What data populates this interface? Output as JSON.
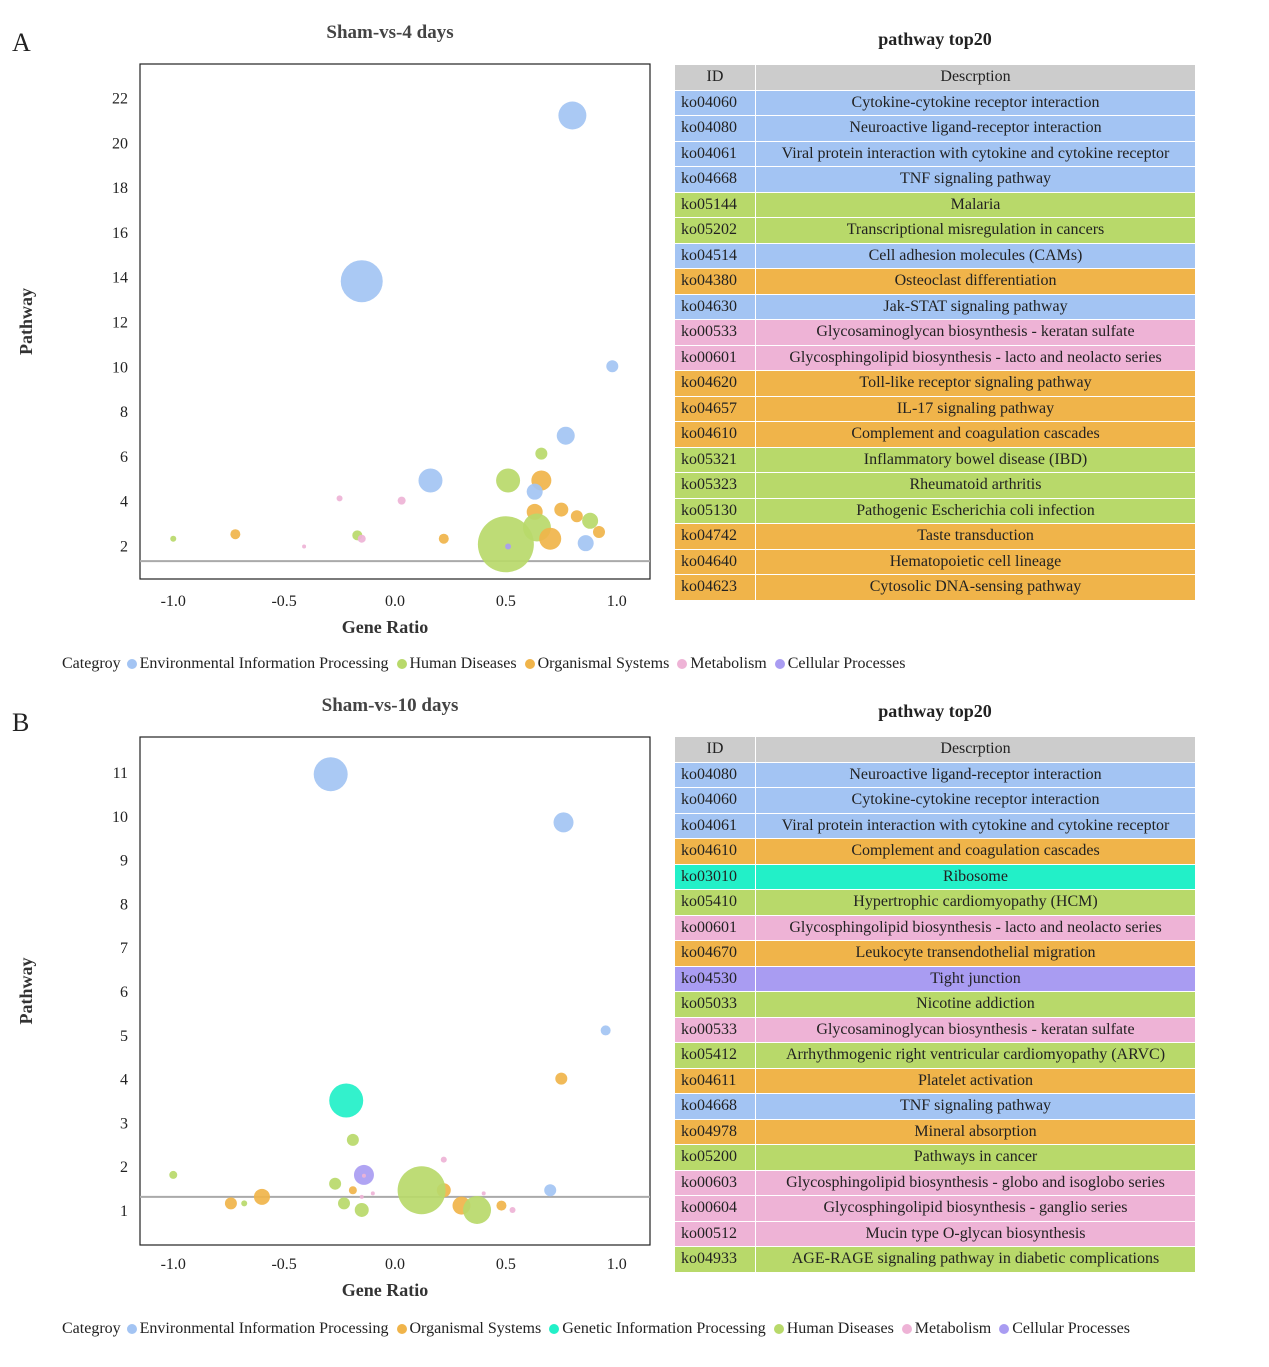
{
  "colors": {
    "Environmental Information Processing": "#a3c4f3",
    "Human Diseases": "#b8d96a",
    "Organismal Systems": "#f0b44a",
    "Metabolism": "#eeb3d6",
    "Cellular Processes": "#a99cf2",
    "Genetic Information Processing": "#22f0c8",
    "header": "#cccccc",
    "threshold": "#aaaaaa"
  },
  "panels": [
    {
      "letter": "A",
      "table_title": "pathway top20",
      "table_header": {
        "id": "ID",
        "desc": "Descrption"
      },
      "rows": [
        {
          "id": "ko04060",
          "desc": "Cytokine-cytokine receptor interaction",
          "category": "Environmental Information Processing"
        },
        {
          "id": "ko04080",
          "desc": "Neuroactive ligand-receptor interaction",
          "category": "Environmental Information Processing"
        },
        {
          "id": "ko04061",
          "desc": "Viral protein interaction with cytokine and cytokine receptor",
          "category": "Environmental Information Processing"
        },
        {
          "id": "ko04668",
          "desc": "TNF signaling pathway",
          "category": "Environmental Information Processing"
        },
        {
          "id": "ko05144",
          "desc": "Malaria",
          "category": "Human Diseases"
        },
        {
          "id": "ko05202",
          "desc": "Transcriptional misregulation in cancers",
          "category": "Human Diseases"
        },
        {
          "id": "ko04514",
          "desc": "Cell adhesion molecules (CAMs)",
          "category": "Environmental Information Processing"
        },
        {
          "id": "ko04380",
          "desc": "Osteoclast differentiation",
          "category": "Organismal Systems"
        },
        {
          "id": "ko04630",
          "desc": "Jak-STAT signaling pathway",
          "category": "Environmental Information Processing"
        },
        {
          "id": "ko00533",
          "desc": "Glycosaminoglycan biosynthesis - keratan sulfate",
          "category": "Metabolism"
        },
        {
          "id": "ko00601",
          "desc": "Glycosphingolipid biosynthesis - lacto and neolacto series",
          "category": "Metabolism"
        },
        {
          "id": "ko04620",
          "desc": "Toll-like receptor signaling pathway",
          "category": "Organismal Systems"
        },
        {
          "id": "ko04657",
          "desc": "IL-17 signaling pathway",
          "category": "Organismal Systems"
        },
        {
          "id": "ko04610",
          "desc": "Complement and coagulation cascades",
          "category": "Organismal Systems"
        },
        {
          "id": "ko05321",
          "desc": "Inflammatory bowel disease (IBD)",
          "category": "Human Diseases"
        },
        {
          "id": "ko05323",
          "desc": "Rheumatoid arthritis",
          "category": "Human Diseases"
        },
        {
          "id": "ko05130",
          "desc": "Pathogenic Escherichia coli infection",
          "category": "Human Diseases"
        },
        {
          "id": "ko04742",
          "desc": "Taste transduction",
          "category": "Organismal Systems"
        },
        {
          "id": "ko04640",
          "desc": "Hematopoietic cell lineage",
          "category": "Organismal Systems"
        },
        {
          "id": "ko04623",
          "desc": "Cytosolic DNA-sensing pathway",
          "category": "Organismal Systems"
        }
      ],
      "legend": {
        "title": "Categroy",
        "items": [
          "Environmental Information Processing",
          "Human Diseases",
          "Organismal Systems",
          "Metabolism",
          "Cellular Processes"
        ]
      }
    },
    {
      "letter": "B",
      "table_title": "pathway top20",
      "table_header": {
        "id": "ID",
        "desc": "Descrption"
      },
      "rows": [
        {
          "id": "ko04080",
          "desc": "Neuroactive ligand-receptor interaction",
          "category": "Environmental Information Processing"
        },
        {
          "id": "ko04060",
          "desc": "Cytokine-cytokine receptor interaction",
          "category": "Environmental Information Processing"
        },
        {
          "id": "ko04061",
          "desc": "Viral protein interaction with cytokine and cytokine receptor",
          "category": "Environmental Information Processing"
        },
        {
          "id": "ko04610",
          "desc": "Complement and coagulation cascades",
          "category": "Organismal Systems"
        },
        {
          "id": "ko03010",
          "desc": "Ribosome",
          "category": "Genetic Information Processing"
        },
        {
          "id": "ko05410",
          "desc": "Hypertrophic cardiomyopathy (HCM)",
          "category": "Human Diseases"
        },
        {
          "id": "ko00601",
          "desc": "Glycosphingolipid biosynthesis - lacto and neolacto series",
          "category": "Metabolism"
        },
        {
          "id": "ko04670",
          "desc": "Leukocyte transendothelial migration",
          "category": "Organismal Systems"
        },
        {
          "id": "ko04530",
          "desc": "Tight junction",
          "category": "Cellular Processes"
        },
        {
          "id": "ko05033",
          "desc": "Nicotine addiction",
          "category": "Human Diseases"
        },
        {
          "id": "ko00533",
          "desc": "Glycosaminoglycan biosynthesis - keratan sulfate",
          "category": "Metabolism"
        },
        {
          "id": "ko05412",
          "desc": "Arrhythmogenic right ventricular cardiomyopathy (ARVC)",
          "category": "Human Diseases"
        },
        {
          "id": "ko04611",
          "desc": "Platelet activation",
          "category": "Organismal Systems"
        },
        {
          "id": "ko04668",
          "desc": "TNF signaling pathway",
          "category": "Environmental Information Processing"
        },
        {
          "id": "ko04978",
          "desc": "Mineral absorption",
          "category": "Organismal Systems"
        },
        {
          "id": "ko05200",
          "desc": "Pathways in cancer",
          "category": "Human Diseases"
        },
        {
          "id": "ko00603",
          "desc": "Glycosphingolipid biosynthesis - globo and isoglobo series",
          "category": "Metabolism"
        },
        {
          "id": "ko00604",
          "desc": "Glycosphingolipid biosynthesis - ganglio series",
          "category": "Metabolism"
        },
        {
          "id": "ko00512",
          "desc": "Mucin type O-glycan biosynthesis",
          "category": "Metabolism"
        },
        {
          "id": "ko04933",
          "desc": "AGE-RAGE signaling pathway in diabetic complications",
          "category": "Human Diseases"
        }
      ],
      "legend": {
        "title": "Categroy",
        "items": [
          "Environmental Information Processing",
          "Organismal Systems",
          "Genetic Information Processing",
          "Human Diseases",
          "Metabolism",
          "Cellular Processes"
        ]
      }
    }
  ],
  "chart_data": [
    {
      "type": "scatter",
      "title": "Sham-vs-4 days",
      "xlabel": "Gene Ratio",
      "ylabel": "Pathway",
      "xlim": [
        -1.15,
        1.15
      ],
      "ylim": [
        0.5,
        23.5
      ],
      "xticks": [
        -1.0,
        -0.5,
        0.0,
        0.5,
        1.0
      ],
      "xtick_labels": [
        "-1.0",
        "-0.5",
        "0.0",
        "0.5",
        "1.0"
      ],
      "yticks": [
        2,
        4,
        6,
        8,
        10,
        12,
        14,
        16,
        18,
        20,
        22
      ],
      "yline": 1.3,
      "points": [
        {
          "x": 0.8,
          "y": 21.2,
          "size": 14,
          "category": "Environmental Information Processing"
        },
        {
          "x": -0.15,
          "y": 13.8,
          "size": 21,
          "category": "Environmental Information Processing"
        },
        {
          "x": 0.98,
          "y": 10.0,
          "size": 6,
          "category": "Environmental Information Processing"
        },
        {
          "x": 0.77,
          "y": 6.9,
          "size": 9,
          "category": "Environmental Information Processing"
        },
        {
          "x": 0.66,
          "y": 6.1,
          "size": 6,
          "category": "Human Diseases"
        },
        {
          "x": 0.16,
          "y": 4.9,
          "size": 12,
          "category": "Environmental Information Processing"
        },
        {
          "x": 0.51,
          "y": 4.9,
          "size": 12,
          "category": "Human Diseases"
        },
        {
          "x": 0.66,
          "y": 4.9,
          "size": 10,
          "category": "Organismal Systems"
        },
        {
          "x": 0.63,
          "y": 4.4,
          "size": 8,
          "category": "Environmental Information Processing"
        },
        {
          "x": -0.25,
          "y": 4.1,
          "size": 3,
          "category": "Metabolism"
        },
        {
          "x": 0.03,
          "y": 4.0,
          "size": 4,
          "category": "Metabolism"
        },
        {
          "x": 0.75,
          "y": 3.6,
          "size": 7,
          "category": "Organismal Systems"
        },
        {
          "x": 0.63,
          "y": 3.5,
          "size": 8,
          "category": "Organismal Systems"
        },
        {
          "x": 0.82,
          "y": 3.3,
          "size": 6,
          "category": "Organismal Systems"
        },
        {
          "x": 0.88,
          "y": 3.1,
          "size": 8,
          "category": "Human Diseases"
        },
        {
          "x": 0.64,
          "y": 2.8,
          "size": 14,
          "category": "Human Diseases"
        },
        {
          "x": -1.0,
          "y": 2.3,
          "size": 3,
          "category": "Human Diseases"
        },
        {
          "x": -0.72,
          "y": 2.5,
          "size": 5,
          "category": "Organismal Systems"
        },
        {
          "x": -0.41,
          "y": 1.95,
          "size": 2,
          "category": "Metabolism"
        },
        {
          "x": -0.17,
          "y": 2.45,
          "size": 5,
          "category": "Human Diseases"
        },
        {
          "x": -0.15,
          "y": 2.3,
          "size": 4,
          "category": "Metabolism"
        },
        {
          "x": 0.22,
          "y": 2.3,
          "size": 5,
          "category": "Organismal Systems"
        },
        {
          "x": 0.5,
          "y": 2.05,
          "size": 28,
          "category": "Human Diseases"
        },
        {
          "x": 0.51,
          "y": 1.95,
          "size": 3,
          "category": "Cellular Processes"
        },
        {
          "x": 0.7,
          "y": 2.3,
          "size": 11,
          "category": "Organismal Systems"
        },
        {
          "x": 0.86,
          "y": 2.1,
          "size": 8,
          "category": "Environmental Information Processing"
        },
        {
          "x": 0.92,
          "y": 2.6,
          "size": 6,
          "category": "Organismal Systems"
        }
      ]
    },
    {
      "type": "scatter",
      "title": "Sham-vs-10 days",
      "xlabel": "Gene Ratio",
      "ylabel": "Pathway",
      "xlim": [
        -1.15,
        1.15
      ],
      "ylim": [
        0.2,
        11.8
      ],
      "xticks": [
        -1.0,
        -0.5,
        0.0,
        0.5,
        1.0
      ],
      "xtick_labels": [
        "-1.0",
        "-0.5",
        "0.0",
        "0.5",
        "1.0"
      ],
      "yticks": [
        1,
        2,
        3,
        4,
        5,
        6,
        7,
        8,
        9,
        10,
        11
      ],
      "yline": 1.3,
      "points": [
        {
          "x": -0.29,
          "y": 10.95,
          "size": 17,
          "category": "Environmental Information Processing"
        },
        {
          "x": 0.76,
          "y": 9.85,
          "size": 10,
          "category": "Environmental Information Processing"
        },
        {
          "x": 0.95,
          "y": 5.1,
          "size": 5,
          "category": "Environmental Information Processing"
        },
        {
          "x": 0.75,
          "y": 4.0,
          "size": 6,
          "category": "Organismal Systems"
        },
        {
          "x": -0.22,
          "y": 3.5,
          "size": 17,
          "category": "Genetic Information Processing"
        },
        {
          "x": -0.19,
          "y": 2.6,
          "size": 6,
          "category": "Human Diseases"
        },
        {
          "x": 0.22,
          "y": 2.15,
          "size": 3,
          "category": "Metabolism"
        },
        {
          "x": -1.0,
          "y": 1.8,
          "size": 4,
          "category": "Human Diseases"
        },
        {
          "x": -0.14,
          "y": 1.8,
          "size": 10,
          "category": "Cellular Processes"
        },
        {
          "x": -0.14,
          "y": 1.78,
          "size": 2,
          "category": "Metabolism"
        },
        {
          "x": -0.27,
          "y": 1.6,
          "size": 6,
          "category": "Human Diseases"
        },
        {
          "x": -0.19,
          "y": 1.45,
          "size": 4,
          "category": "Organismal Systems"
        },
        {
          "x": -0.6,
          "y": 1.3,
          "size": 8,
          "category": "Organismal Systems"
        },
        {
          "x": -0.15,
          "y": 1.3,
          "size": 2,
          "category": "Metabolism"
        },
        {
          "x": -0.1,
          "y": 1.38,
          "size": 2,
          "category": "Metabolism"
        },
        {
          "x": 0.22,
          "y": 1.45,
          "size": 7,
          "category": "Organismal Systems"
        },
        {
          "x": 0.12,
          "y": 1.45,
          "size": 24,
          "category": "Human Diseases"
        },
        {
          "x": 0.7,
          "y": 1.45,
          "size": 6,
          "category": "Environmental Information Processing"
        },
        {
          "x": -0.74,
          "y": 1.15,
          "size": 6,
          "category": "Organismal Systems"
        },
        {
          "x": -0.68,
          "y": 1.15,
          "size": 3,
          "category": "Human Diseases"
        },
        {
          "x": -0.23,
          "y": 1.15,
          "size": 6,
          "category": "Human Diseases"
        },
        {
          "x": -0.15,
          "y": 1.0,
          "size": 7,
          "category": "Human Diseases"
        },
        {
          "x": 0.3,
          "y": 1.1,
          "size": 9,
          "category": "Organismal Systems"
        },
        {
          "x": 0.37,
          "y": 1.0,
          "size": 14,
          "category": "Human Diseases"
        },
        {
          "x": 0.4,
          "y": 1.38,
          "size": 2,
          "category": "Metabolism"
        },
        {
          "x": 0.48,
          "y": 1.1,
          "size": 5,
          "category": "Organismal Systems"
        },
        {
          "x": 0.53,
          "y": 1.0,
          "size": 3,
          "category": "Metabolism"
        }
      ]
    }
  ]
}
